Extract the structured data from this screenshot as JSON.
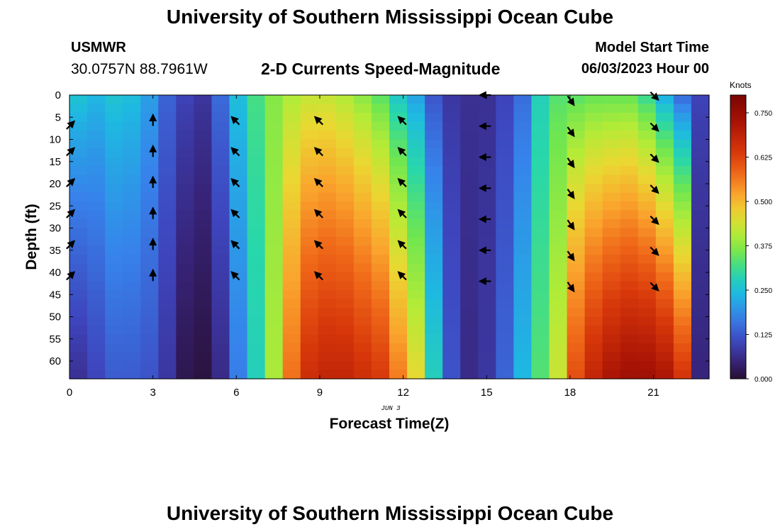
{
  "header": {
    "title": "University of Southern Mississippi Ocean Cube",
    "station": "USMWR",
    "coordinates": "30.0757N  88.7961W",
    "subtitle": "2-D Currents Speed-Magnitude",
    "model_start_label": "Model Start Time",
    "model_start_value": "06/03/2023 Hour 00"
  },
  "footer": {
    "title": "University of Southern Mississippi Ocean Cube"
  },
  "chart_data": {
    "type": "heatmap",
    "title": "2-D Currents Speed-Magnitude",
    "xlabel": "Forecast Time(Z)",
    "ylabel": "Depth (ft)",
    "date_label": "JUN 3",
    "x_ticks": [
      0,
      3,
      6,
      9,
      12,
      15,
      18,
      21
    ],
    "y_ticks": [
      0,
      5,
      10,
      15,
      20,
      25,
      30,
      35,
      40,
      45,
      50,
      55,
      60
    ],
    "xlim": [
      0,
      23
    ],
    "ylim": [
      0,
      64
    ],
    "colorbar": {
      "units": "Knots",
      "ticks": [
        "0.000",
        "0.125",
        "0.250",
        "0.375",
        "0.500",
        "0.625",
        "0.750"
      ],
      "range": [
        0,
        0.8
      ]
    },
    "speed_top_knots": [
      0.26,
      0.24,
      0.26,
      0.25,
      0.21,
      0.14,
      0.1,
      0.08,
      0.15,
      0.25,
      0.32,
      0.37,
      0.4,
      0.42,
      0.42,
      0.4,
      0.37,
      0.33,
      0.26,
      0.21,
      0.12,
      0.08,
      0.07,
      0.07,
      0.1,
      0.15,
      0.28,
      0.33,
      0.33,
      0.34,
      0.34,
      0.34,
      0.3,
      0.22,
      0.14,
      0.1
    ],
    "speed_deep_knots": [
      0.07,
      0.1,
      0.13,
      0.13,
      0.12,
      0.08,
      0.02,
      0.01,
      0.06,
      0.17,
      0.28,
      0.4,
      0.57,
      0.66,
      0.68,
      0.68,
      0.66,
      0.64,
      0.56,
      0.46,
      0.28,
      0.12,
      0.06,
      0.08,
      0.14,
      0.24,
      0.33,
      0.43,
      0.61,
      0.68,
      0.72,
      0.74,
      0.74,
      0.72,
      0.65,
      0.05
    ],
    "arrows": [
      {
        "time": 0,
        "depths": [
          7,
          13,
          20,
          27,
          34,
          41
        ],
        "dir_deg": 45
      },
      {
        "time": 3,
        "depths": [
          6,
          13,
          20,
          27,
          34,
          41
        ],
        "dir_deg": 0
      },
      {
        "time": 6,
        "depths": [
          6,
          13,
          20,
          27,
          34,
          41
        ],
        "dir_deg": -45
      },
      {
        "time": 9,
        "depths": [
          6,
          13,
          20,
          27,
          34,
          41
        ],
        "dir_deg": -45
      },
      {
        "time": 12,
        "depths": [
          6,
          13,
          20,
          27,
          34,
          41
        ],
        "dir_deg": -45
      },
      {
        "time": 15,
        "depths": [
          0,
          7,
          14,
          21,
          28,
          35,
          42
        ],
        "dir_deg": -90
      },
      {
        "time": 18,
        "depths": [
          1,
          8,
          15,
          22,
          29,
          36,
          43
        ],
        "dir_deg": 145
      },
      {
        "time": 21,
        "depths": [
          0,
          7,
          14,
          21,
          28,
          35,
          43
        ],
        "dir_deg": 135
      }
    ]
  }
}
